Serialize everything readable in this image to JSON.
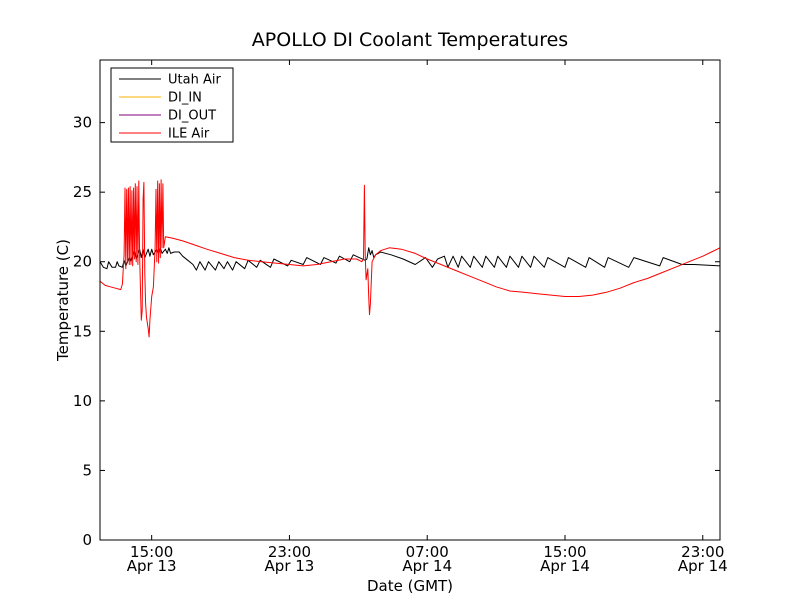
{
  "chart_data": {
    "type": "line",
    "title": "APOLLO DI Coolant Temperatures",
    "xlabel": "Date (GMT)",
    "ylabel": "Temperature (C)",
    "x_unit": "hours since Apr 13 12:00 GMT",
    "xlim": [
      0,
      36
    ],
    "ylim": [
      0,
      34.5
    ],
    "y_ticks": [
      0,
      5,
      10,
      15,
      20,
      25,
      30
    ],
    "x_ticks": [
      {
        "x": 3,
        "label": "15:00",
        "sublabel": "Apr 13"
      },
      {
        "x": 11,
        "label": "23:00",
        "sublabel": "Apr 13"
      },
      {
        "x": 19,
        "label": "07:00",
        "sublabel": "Apr 14"
      },
      {
        "x": 27,
        "label": "15:00",
        "sublabel": "Apr 14"
      },
      {
        "x": 35,
        "label": "23:00",
        "sublabel": "Apr 14"
      }
    ],
    "legend_position": "top-left",
    "series": [
      {
        "name": "Utah Air",
        "color": "#000000",
        "points": [
          [
            0,
            20.0
          ],
          [
            0.2,
            19.6
          ],
          [
            0.4,
            19.5
          ],
          [
            0.5,
            20.0
          ],
          [
            0.7,
            19.6
          ],
          [
            0.9,
            19.6
          ],
          [
            1.0,
            20.0
          ],
          [
            1.1,
            19.7
          ],
          [
            1.3,
            19.6
          ],
          [
            1.4,
            20.1
          ],
          [
            1.5,
            19.7
          ],
          [
            1.7,
            20.3
          ],
          [
            1.8,
            20.0
          ],
          [
            2.0,
            20.8
          ],
          [
            2.1,
            20.2
          ],
          [
            2.3,
            20.9
          ],
          [
            2.4,
            20.3
          ],
          [
            2.5,
            20.9
          ],
          [
            2.6,
            20.3
          ],
          [
            2.8,
            20.9
          ],
          [
            2.9,
            20.4
          ],
          [
            3.0,
            20.9
          ],
          [
            3.1,
            20.5
          ],
          [
            3.3,
            20.9
          ],
          [
            3.4,
            20.6
          ],
          [
            3.5,
            21.0
          ],
          [
            3.6,
            20.6
          ],
          [
            3.8,
            20.9
          ],
          [
            3.9,
            20.6
          ],
          [
            4.0,
            21.0
          ],
          [
            4.1,
            20.6
          ],
          [
            4.3,
            20.7
          ],
          [
            4.6,
            20.7
          ],
          [
            4.8,
            20.4
          ],
          [
            5.1,
            20.1
          ],
          [
            5.4,
            19.8
          ],
          [
            5.6,
            19.4
          ],
          [
            5.8,
            20.0
          ],
          [
            6.1,
            19.4
          ],
          [
            6.3,
            20.0
          ],
          [
            6.7,
            19.4
          ],
          [
            6.9,
            20.0
          ],
          [
            7.2,
            19.5
          ],
          [
            7.4,
            20.0
          ],
          [
            7.7,
            19.4
          ],
          [
            7.9,
            20.0
          ],
          [
            8.4,
            19.5
          ],
          [
            8.6,
            20.1
          ],
          [
            9.1,
            19.6
          ],
          [
            9.3,
            20.1
          ],
          [
            9.9,
            19.6
          ],
          [
            10.1,
            20.2
          ],
          [
            10.9,
            19.7
          ],
          [
            11.1,
            20.1
          ],
          [
            11.8,
            19.8
          ],
          [
            12.0,
            20.3
          ],
          [
            12.8,
            19.8
          ],
          [
            13.0,
            20.3
          ],
          [
            13.7,
            19.9
          ],
          [
            13.9,
            20.4
          ],
          [
            14.5,
            20.0
          ],
          [
            14.7,
            20.5
          ],
          [
            15.4,
            20.1
          ],
          [
            15.5,
            20.2
          ],
          [
            15.6,
            21.0
          ],
          [
            15.7,
            20.5
          ],
          [
            15.8,
            20.8
          ],
          [
            15.9,
            20.3
          ],
          [
            16.0,
            20.5
          ],
          [
            16.3,
            20.7
          ],
          [
            16.9,
            20.5
          ],
          [
            17.6,
            20.2
          ],
          [
            18.3,
            19.8
          ],
          [
            18.9,
            20.3
          ],
          [
            19.3,
            19.6
          ],
          [
            19.6,
            20.2
          ],
          [
            20.0,
            20.4
          ],
          [
            20.2,
            19.6
          ],
          [
            20.5,
            20.4
          ],
          [
            20.8,
            19.6
          ],
          [
            21.0,
            20.4
          ],
          [
            21.5,
            19.6
          ],
          [
            21.7,
            20.4
          ],
          [
            22.2,
            19.6
          ],
          [
            22.4,
            20.4
          ],
          [
            22.9,
            19.6
          ],
          [
            23.1,
            20.4
          ],
          [
            23.6,
            19.6
          ],
          [
            23.8,
            20.4
          ],
          [
            24.3,
            19.6
          ],
          [
            24.5,
            20.4
          ],
          [
            25.0,
            19.6
          ],
          [
            25.2,
            20.4
          ],
          [
            25.8,
            19.6
          ],
          [
            26.0,
            20.3
          ],
          [
            27.0,
            19.6
          ],
          [
            27.2,
            20.3
          ],
          [
            28.2,
            19.6
          ],
          [
            28.4,
            20.3
          ],
          [
            29.3,
            19.6
          ],
          [
            29.5,
            20.3
          ],
          [
            30.7,
            19.6
          ],
          [
            31.0,
            20.3
          ],
          [
            32.5,
            19.7
          ],
          [
            32.7,
            20.3
          ],
          [
            33.8,
            19.8
          ],
          [
            34.5,
            19.8
          ],
          [
            36.0,
            19.7
          ]
        ]
      },
      {
        "name": "DI_IN",
        "color": "#ffb300",
        "points": []
      },
      {
        "name": "DI_OUT",
        "color": "#800080",
        "points": []
      },
      {
        "name": "ILE Air",
        "color": "#ff0000",
        "points": [
          [
            0,
            18.6
          ],
          [
            0.3,
            18.3
          ],
          [
            0.6,
            18.2
          ],
          [
            0.9,
            18.1
          ],
          [
            1.2,
            18.0
          ],
          [
            1.3,
            18.4
          ],
          [
            1.4,
            20.5
          ],
          [
            1.45,
            25.3
          ],
          [
            1.5,
            19.5
          ],
          [
            1.55,
            25.2
          ],
          [
            1.6,
            20.0
          ],
          [
            1.65,
            25.3
          ],
          [
            1.7,
            19.8
          ],
          [
            1.75,
            25.4
          ],
          [
            1.8,
            19.8
          ],
          [
            1.85,
            25.1
          ],
          [
            1.9,
            19.7
          ],
          [
            1.95,
            25.3
          ],
          [
            2.0,
            20.2
          ],
          [
            2.05,
            25.6
          ],
          [
            2.1,
            20.0
          ],
          [
            2.15,
            25.4
          ],
          [
            2.2,
            19.8
          ],
          [
            2.25,
            25.8
          ],
          [
            2.3,
            20.5
          ],
          [
            2.35,
            18.0
          ],
          [
            2.4,
            15.8
          ],
          [
            2.45,
            16.5
          ],
          [
            2.5,
            24.5
          ],
          [
            2.55,
            25.7
          ],
          [
            2.6,
            19.2
          ],
          [
            2.65,
            17.0
          ],
          [
            2.7,
            16.0
          ],
          [
            2.8,
            15.2
          ],
          [
            2.85,
            14.6
          ],
          [
            2.9,
            15.8
          ],
          [
            3.0,
            17.5
          ],
          [
            3.1,
            18.2
          ],
          [
            3.2,
            21.0
          ],
          [
            3.25,
            25.2
          ],
          [
            3.3,
            20.0
          ],
          [
            3.35,
            25.8
          ],
          [
            3.4,
            19.9
          ],
          [
            3.45,
            25.6
          ],
          [
            3.5,
            20.3
          ],
          [
            3.55,
            25.9
          ],
          [
            3.6,
            21.0
          ],
          [
            3.65,
            25.6
          ],
          [
            3.7,
            21.0
          ],
          [
            3.8,
            21.8
          ],
          [
            4.2,
            21.7
          ],
          [
            4.8,
            21.5
          ],
          [
            5.5,
            21.2
          ],
          [
            6.2,
            20.9
          ],
          [
            7.0,
            20.6
          ],
          [
            7.8,
            20.3
          ],
          [
            8.6,
            20.1
          ],
          [
            9.4,
            20.0
          ],
          [
            10.2,
            19.9
          ],
          [
            11.0,
            19.8
          ],
          [
            11.8,
            19.7
          ],
          [
            12.6,
            19.8
          ],
          [
            13.4,
            20.0
          ],
          [
            14.2,
            20.2
          ],
          [
            14.9,
            20.2
          ],
          [
            15.2,
            20.0
          ],
          [
            15.3,
            20.2
          ],
          [
            15.35,
            25.5
          ],
          [
            15.4,
            20.5
          ],
          [
            15.45,
            18.7
          ],
          [
            15.55,
            19.5
          ],
          [
            15.6,
            17.5
          ],
          [
            15.65,
            16.2
          ],
          [
            15.7,
            17.0
          ],
          [
            15.8,
            20.0
          ],
          [
            16.0,
            20.5
          ],
          [
            16.3,
            20.8
          ],
          [
            16.8,
            21.0
          ],
          [
            17.5,
            20.9
          ],
          [
            18.3,
            20.6
          ],
          [
            19.0,
            20.2
          ],
          [
            19.8,
            19.8
          ],
          [
            20.6,
            19.4
          ],
          [
            21.4,
            19.0
          ],
          [
            22.2,
            18.6
          ],
          [
            23.0,
            18.2
          ],
          [
            23.8,
            17.9
          ],
          [
            24.6,
            17.8
          ],
          [
            25.4,
            17.7
          ],
          [
            26.2,
            17.6
          ],
          [
            27.0,
            17.5
          ],
          [
            27.8,
            17.5
          ],
          [
            28.6,
            17.6
          ],
          [
            29.4,
            17.8
          ],
          [
            30.2,
            18.1
          ],
          [
            31.0,
            18.5
          ],
          [
            31.8,
            18.8
          ],
          [
            32.6,
            19.2
          ],
          [
            33.4,
            19.6
          ],
          [
            34.2,
            20.0
          ],
          [
            35.0,
            20.4
          ],
          [
            35.5,
            20.7
          ],
          [
            36.0,
            21.0
          ]
        ]
      }
    ]
  }
}
